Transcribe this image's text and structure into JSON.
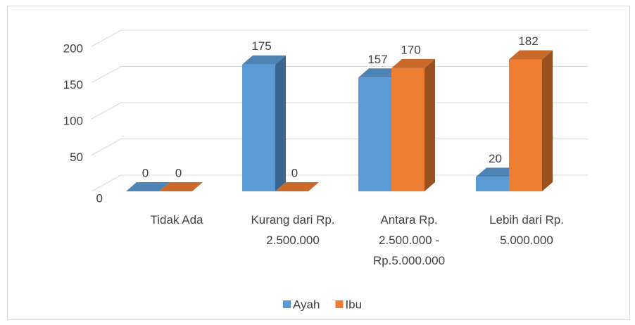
{
  "chart_data": {
    "type": "bar3d",
    "categories": [
      "Tidak Ada",
      "Kurang dari Rp. 2.500.000",
      "Antara Rp. 2.500.000 - Rp.5.000.000",
      "Lebih dari Rp. 5.000.000"
    ],
    "series": [
      {
        "name": "Ayah",
        "color": "#5b9bd5",
        "values": [
          0,
          175,
          157,
          20
        ]
      },
      {
        "name": "Ibu",
        "color": "#ed7d31",
        "values": [
          0,
          0,
          170,
          182
        ]
      }
    ],
    "ylim": [
      0,
      200
    ],
    "yticks": [
      0,
      50,
      100,
      150,
      200
    ],
    "grid": true,
    "legend": "bottom"
  }
}
